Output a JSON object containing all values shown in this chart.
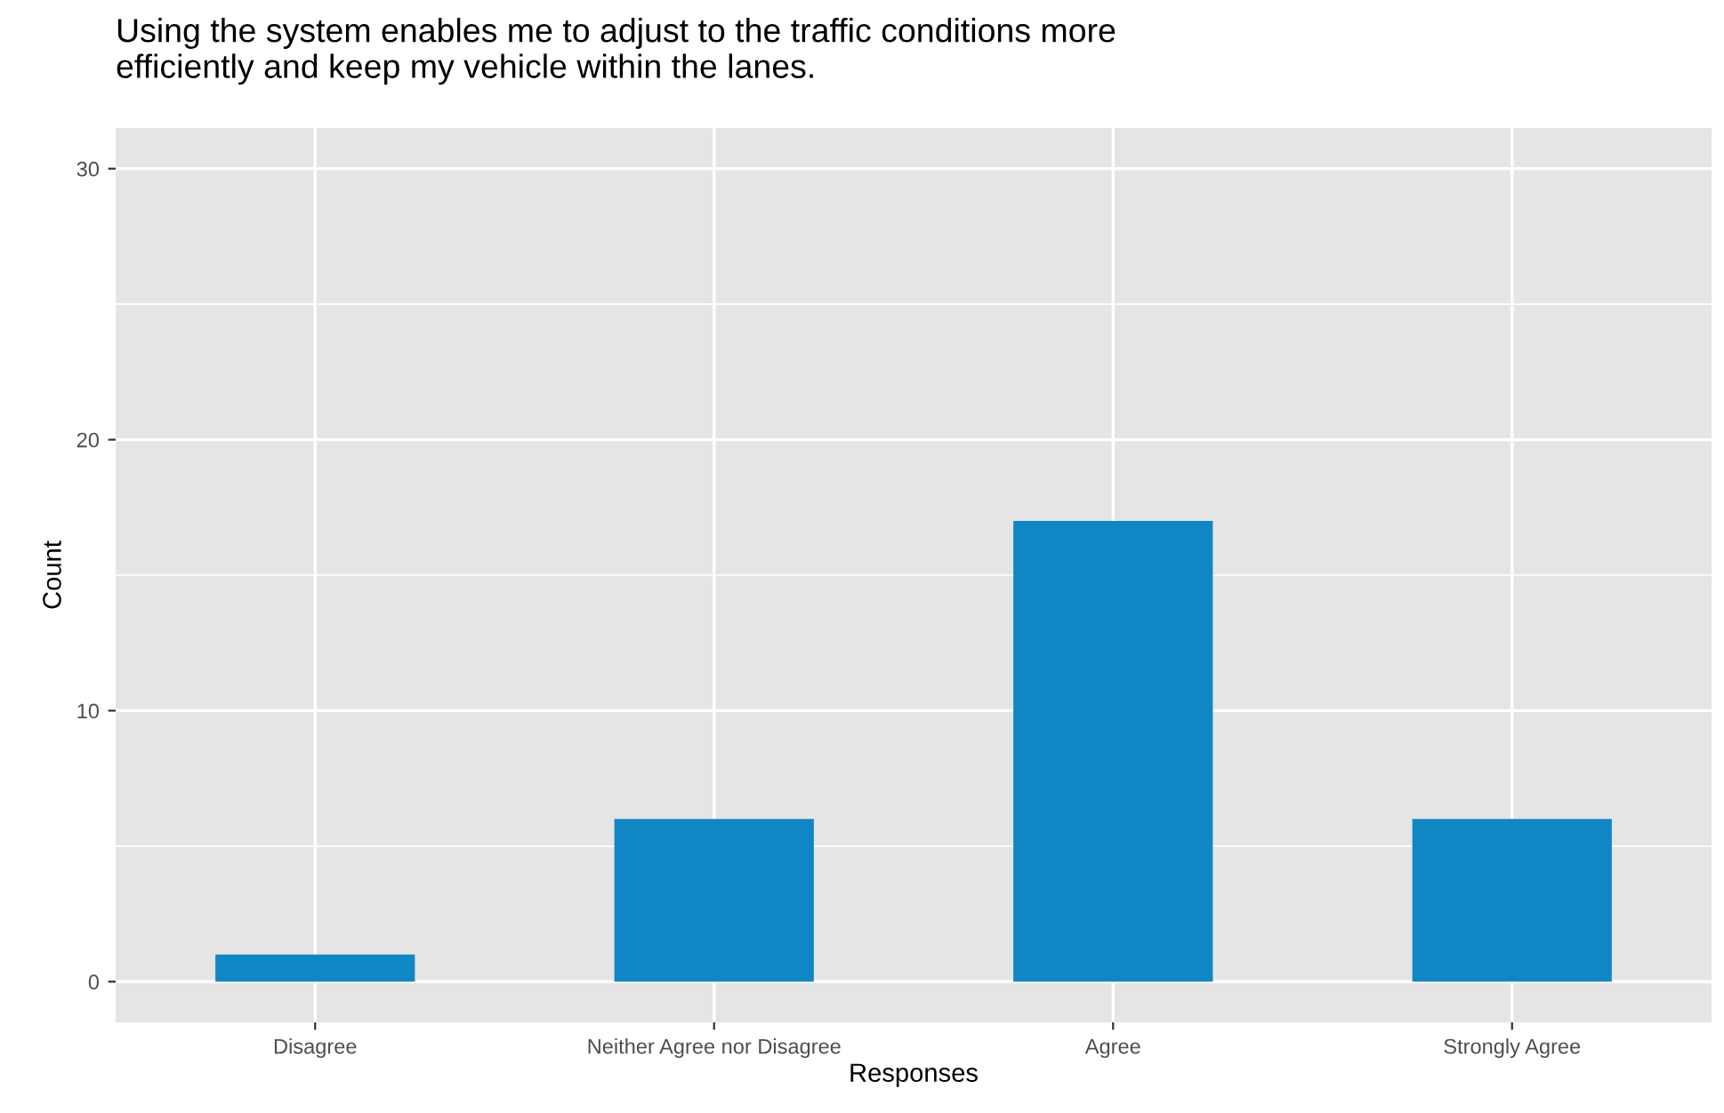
{
  "chart_data": {
    "type": "bar",
    "title": "Using the system enables me to adjust to the traffic conditions more\nefficiently and keep my vehicle within the lanes.",
    "xlabel": "Responses",
    "ylabel": "Count",
    "categories": [
      "Disagree",
      "Neither Agree nor Disagree",
      "Agree",
      "Strongly Agree"
    ],
    "values": [
      1,
      6,
      17,
      6
    ],
    "color": "#1087c4",
    "ylim": [
      -1.5,
      31.5
    ],
    "yticks": [
      0,
      10,
      20,
      30
    ],
    "grid": true
  }
}
